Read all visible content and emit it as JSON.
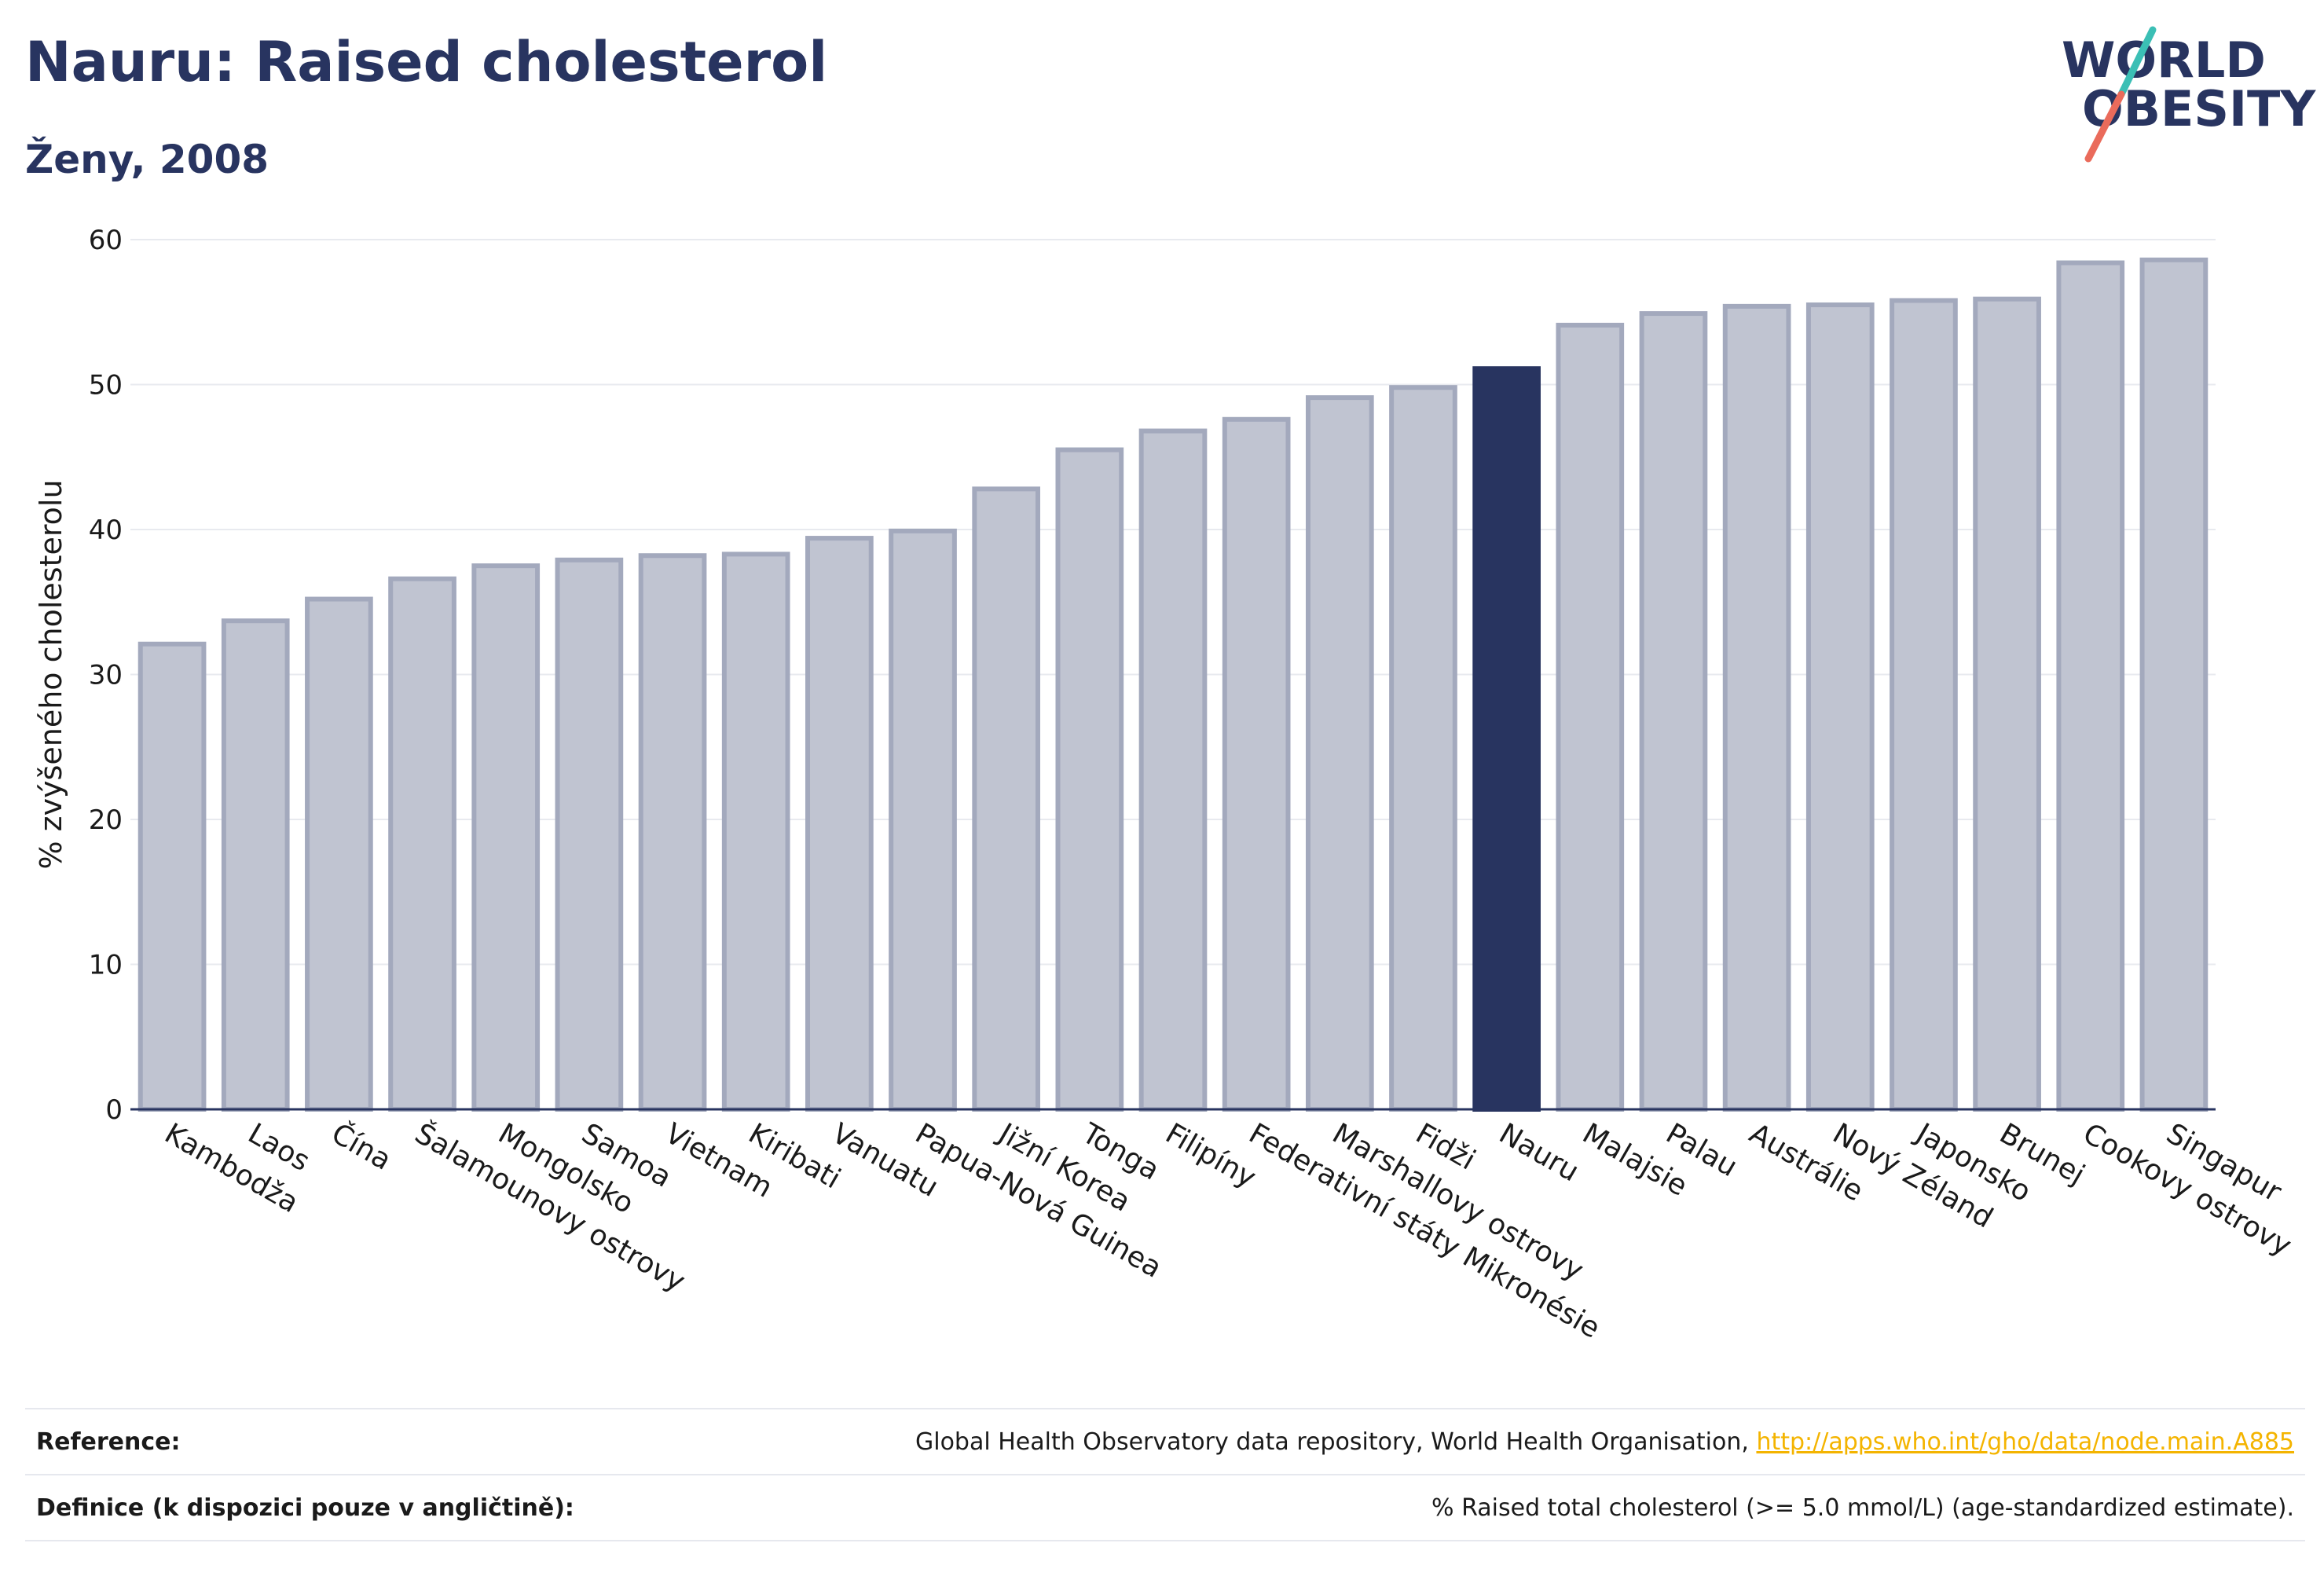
{
  "header": {
    "title": "Nauru: Raised cholesterol",
    "subtitle": "Ženy, 2008"
  },
  "logo": {
    "line1": "WORLD",
    "line2": "OBESITY"
  },
  "colors": {
    "bar_default": "#c0c4d1",
    "bar_default_border": "#a3a9bd",
    "bar_highlight": "#283460",
    "title": "#283460",
    "link": "#f4b400",
    "logo_teal": "#3bbfb5",
    "logo_coral": "#ea6b5b"
  },
  "chart_data": {
    "type": "bar",
    "ylabel": "% zvýšeného cholesterolu",
    "ylim": [
      0,
      60
    ],
    "yticks": [
      0,
      10,
      20,
      30,
      40,
      50,
      60
    ],
    "grid": true,
    "highlight": "Nauru",
    "categories": [
      "Kambodža",
      "Laos",
      "Čína",
      "Šalamounovy ostrovy",
      "Mongolsko",
      "Samoa",
      "Vietnam",
      "Kiribati",
      "Vanuatu",
      "Papua-Nová Guinea",
      "Jižní Korea",
      "Tonga",
      "Filipíny",
      "Federativní státy Mikronésie",
      "Marshallovy ostrovy",
      "Fidži",
      "Nauru",
      "Malajsie",
      "Palau",
      "Austrálie",
      "Nový Zéland",
      "Japonsko",
      "Brunej",
      "Cookovy ostrovy",
      "Singapur"
    ],
    "values": [
      32.1,
      33.7,
      35.2,
      36.6,
      37.5,
      37.9,
      38.2,
      38.3,
      39.4,
      39.9,
      42.8,
      45.5,
      46.8,
      47.6,
      49.1,
      49.8,
      51.1,
      54.1,
      54.9,
      55.4,
      55.5,
      55.8,
      55.9,
      58.4,
      58.6
    ]
  },
  "footer": {
    "reference_label": "Reference:",
    "reference_text": "Global Health Observatory data repository, World Health Organisation,",
    "reference_link": "http://apps.who.int/gho/data/node.main.A885",
    "definition_label": "Definice (k dispozici pouze v angličtině):",
    "definition_text": "% Raised total cholesterol (>= 5.0 mmol/L) (age-standardized estimate)."
  }
}
